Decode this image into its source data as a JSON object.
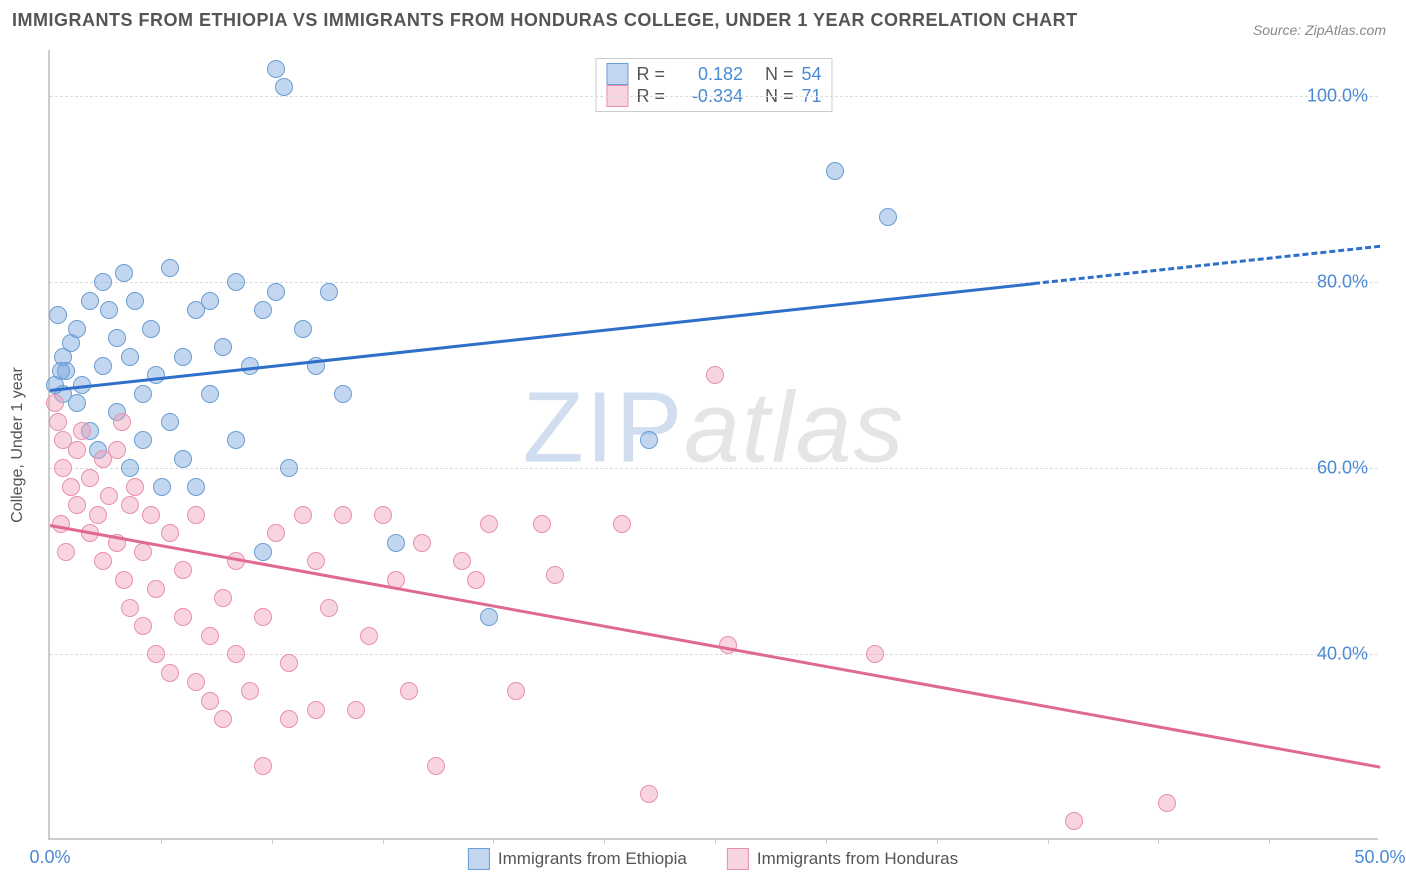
{
  "title": "IMMIGRANTS FROM ETHIOPIA VS IMMIGRANTS FROM HONDURAS COLLEGE, UNDER 1 YEAR CORRELATION CHART",
  "source": "Source: ZipAtlas.com",
  "ylabel": "College, Under 1 year",
  "watermark_z": "Z",
  "watermark_ip": "IP",
  "watermark_atlas": "atlas",
  "chart": {
    "type": "scatter",
    "background_color": "#ffffff",
    "grid_color": "#dddddd",
    "axis_color": "#cccccc",
    "xlim": [
      0,
      50
    ],
    "ylim": [
      20,
      105
    ],
    "xticks": [
      {
        "pos": 0.0,
        "label": "0.0%"
      },
      {
        "pos": 50.0,
        "label": "50.0%"
      }
    ],
    "xminor_ticks": [
      4.17,
      8.33,
      12.5,
      16.67,
      20.83,
      25.0,
      29.17,
      33.33,
      37.5,
      41.67,
      45.83
    ],
    "yticks": [
      {
        "pos": 40.0,
        "label": "40.0%"
      },
      {
        "pos": 60.0,
        "label": "60.0%"
      },
      {
        "pos": 80.0,
        "label": "80.0%"
      },
      {
        "pos": 100.0,
        "label": "100.0%"
      }
    ],
    "xtick_color": "#4a8ad4",
    "ytick_color": "#4a8ad4",
    "label_fontsize": 16,
    "tick_fontsize": 18,
    "series": [
      {
        "name": "Immigrants from Ethiopia",
        "color_fill": "rgba(120,165,220,0.45)",
        "color_stroke": "#6a9ed4",
        "trend_color": "#2e6fc9",
        "marker_radius": 9,
        "R": "0.182",
        "N": "54",
        "trend": {
          "x1": 0,
          "y1": 68.5,
          "x2": 37,
          "y2": 80.0,
          "x2_dash": 50,
          "y2_dash": 84.0
        },
        "points": [
          [
            0.3,
            76.5
          ],
          [
            0.5,
            72
          ],
          [
            0.5,
            68
          ],
          [
            0.6,
            70.5
          ],
          [
            0.8,
            73.5
          ],
          [
            1.0,
            75
          ],
          [
            1.0,
            67
          ],
          [
            1.2,
            69
          ],
          [
            1.5,
            78
          ],
          [
            1.5,
            64
          ],
          [
            1.8,
            62
          ],
          [
            2.0,
            71
          ],
          [
            2.0,
            80
          ],
          [
            2.2,
            77
          ],
          [
            2.5,
            74
          ],
          [
            2.5,
            66
          ],
          [
            2.8,
            81
          ],
          [
            3.0,
            72
          ],
          [
            3.0,
            60
          ],
          [
            3.2,
            78
          ],
          [
            3.5,
            68
          ],
          [
            3.5,
            63
          ],
          [
            3.8,
            75
          ],
          [
            4.0,
            70
          ],
          [
            4.2,
            58
          ],
          [
            4.5,
            81.5
          ],
          [
            4.5,
            65
          ],
          [
            5.0,
            72
          ],
          [
            5.0,
            61
          ],
          [
            5.5,
            77
          ],
          [
            5.5,
            58
          ],
          [
            6.0,
            68
          ],
          [
            6.0,
            78
          ],
          [
            6.5,
            73
          ],
          [
            7.0,
            63
          ],
          [
            7.0,
            80
          ],
          [
            7.5,
            71
          ],
          [
            8.0,
            77
          ],
          [
            8.0,
            51
          ],
          [
            8.5,
            79
          ],
          [
            8.5,
            103
          ],
          [
            8.8,
            101
          ],
          [
            9.0,
            60
          ],
          [
            9.5,
            75
          ],
          [
            10.0,
            71
          ],
          [
            10.5,
            79
          ],
          [
            11.0,
            68
          ],
          [
            13.0,
            52
          ],
          [
            16.5,
            44
          ],
          [
            22.5,
            63
          ],
          [
            29.5,
            92
          ],
          [
            31.5,
            87
          ],
          [
            0.2,
            69
          ],
          [
            0.4,
            70.5
          ]
        ]
      },
      {
        "name": "Immigrants from Honduras",
        "color_fill": "rgba(240,160,185,0.45)",
        "color_stroke": "#e891ad",
        "trend_color": "#e06a8f",
        "marker_radius": 9,
        "R": "-0.334",
        "N": "71",
        "trend": {
          "x1": 0,
          "y1": 54.0,
          "x2": 50,
          "y2": 28.0
        },
        "points": [
          [
            0.3,
            65
          ],
          [
            0.5,
            63
          ],
          [
            0.5,
            60
          ],
          [
            0.8,
            58
          ],
          [
            1.0,
            62
          ],
          [
            1.0,
            56
          ],
          [
            1.2,
            64
          ],
          [
            1.5,
            59
          ],
          [
            1.5,
            53
          ],
          [
            1.8,
            55
          ],
          [
            2.0,
            61
          ],
          [
            2.0,
            50
          ],
          [
            2.2,
            57
          ],
          [
            2.5,
            52
          ],
          [
            2.5,
            62
          ],
          [
            2.8,
            48
          ],
          [
            3.0,
            56
          ],
          [
            3.0,
            45
          ],
          [
            3.2,
            58
          ],
          [
            3.5,
            51
          ],
          [
            3.5,
            43
          ],
          [
            3.8,
            55
          ],
          [
            4.0,
            47
          ],
          [
            4.0,
            40
          ],
          [
            4.5,
            53
          ],
          [
            4.5,
            38
          ],
          [
            5.0,
            49
          ],
          [
            5.0,
            44
          ],
          [
            5.5,
            37
          ],
          [
            5.5,
            55
          ],
          [
            6.0,
            42
          ],
          [
            6.0,
            35
          ],
          [
            6.5,
            46
          ],
          [
            6.5,
            33
          ],
          [
            7.0,
            40
          ],
          [
            7.0,
            50
          ],
          [
            7.5,
            36
          ],
          [
            8.0,
            44
          ],
          [
            8.0,
            28
          ],
          [
            8.5,
            53
          ],
          [
            9.0,
            39
          ],
          [
            9.0,
            33
          ],
          [
            9.5,
            55
          ],
          [
            10.0,
            50
          ],
          [
            10.0,
            34
          ],
          [
            10.5,
            45
          ],
          [
            11.0,
            55
          ],
          [
            11.5,
            34
          ],
          [
            12.0,
            42
          ],
          [
            12.5,
            55
          ],
          [
            13.0,
            48
          ],
          [
            13.5,
            36
          ],
          [
            14.0,
            52
          ],
          [
            14.5,
            28
          ],
          [
            15.5,
            50
          ],
          [
            16.0,
            48
          ],
          [
            16.5,
            54
          ],
          [
            17.5,
            36
          ],
          [
            18.5,
            54
          ],
          [
            19.0,
            48.5
          ],
          [
            21.5,
            54
          ],
          [
            22.5,
            25
          ],
          [
            25.0,
            70
          ],
          [
            25.5,
            41
          ],
          [
            31.0,
            40
          ],
          [
            38.5,
            22
          ],
          [
            42.0,
            24
          ],
          [
            0.2,
            67
          ],
          [
            0.4,
            54
          ],
          [
            0.6,
            51
          ],
          [
            2.7,
            65
          ]
        ]
      }
    ]
  },
  "legend_top": {
    "r_label": "R = ",
    "n_label": "N = ",
    "text_color": "#555555",
    "value_color": "#4a8ad4"
  },
  "legend_bottom_items": [
    "Immigrants from Ethiopia",
    "Immigrants from Honduras"
  ]
}
